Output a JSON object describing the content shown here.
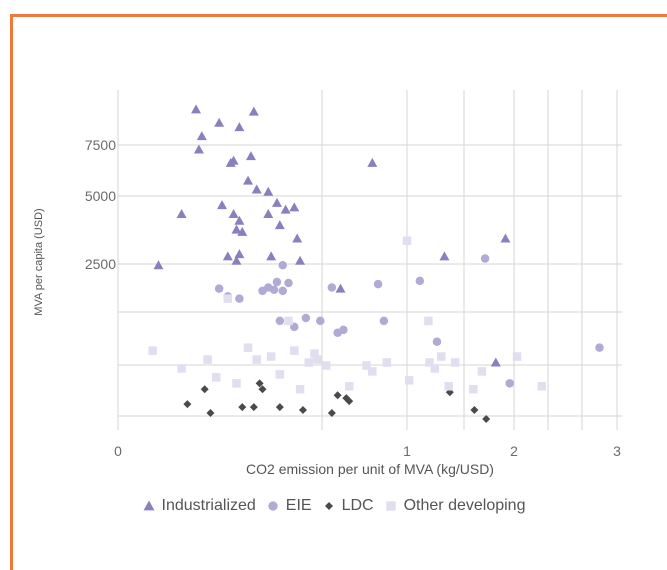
{
  "colors": {
    "frame": "#ee7a3a"
  },
  "chart_data": {
    "type": "scatter",
    "xlabel": "CO2 emission per unit of MVA (kg/USD)",
    "ylabel": "MVA per capita (USD)",
    "x_ticks": [
      "0",
      "1",
      "2",
      "3"
    ],
    "y_ticks": [
      "2500",
      "5000",
      "7500"
    ],
    "grid": true,
    "legend_position": "bottom",
    "series": [
      {
        "name": "Industrialized",
        "marker": "triangle",
        "color": "#8b80bf",
        "points": [
          [
            0.27,
            9100
          ],
          [
            0.35,
            8500
          ],
          [
            0.29,
            7900
          ],
          [
            0.42,
            8300
          ],
          [
            0.47,
            9000
          ],
          [
            0.28,
            7300
          ],
          [
            0.39,
            6700
          ],
          [
            0.4,
            6800
          ],
          [
            0.46,
            7000
          ],
          [
            0.88,
            6700
          ],
          [
            0.45,
            5900
          ],
          [
            0.48,
            5500
          ],
          [
            0.52,
            5400
          ],
          [
            0.22,
            4400
          ],
          [
            0.36,
            4800
          ],
          [
            0.55,
            4900
          ],
          [
            0.58,
            4600
          ],
          [
            0.61,
            4700
          ],
          [
            0.4,
            4400
          ],
          [
            0.42,
            4100
          ],
          [
            0.52,
            4400
          ],
          [
            0.41,
            3700
          ],
          [
            0.43,
            3600
          ],
          [
            0.56,
            3900
          ],
          [
            0.62,
            3300
          ],
          [
            0.14,
            2100
          ],
          [
            0.38,
            2500
          ],
          [
            0.42,
            2600
          ],
          [
            0.53,
            2500
          ],
          [
            0.63,
            2300
          ],
          [
            0.41,
            2300
          ],
          [
            0.77,
            1050
          ],
          [
            1.35,
            2500
          ],
          [
            1.92,
            3300
          ],
          [
            1.83,
            -1700
          ]
        ]
      },
      {
        "name": "EIE",
        "color": "#b2a9d4",
        "marker": "circle",
        "points": [
          [
            0.35,
            1050
          ],
          [
            0.38,
            700
          ],
          [
            0.42,
            600
          ],
          [
            0.5,
            950
          ],
          [
            0.52,
            1100
          ],
          [
            0.54,
            1000
          ],
          [
            0.55,
            1350
          ],
          [
            0.57,
            950
          ],
          [
            0.59,
            1300
          ],
          [
            0.57,
            2100
          ],
          [
            0.56,
            -300
          ],
          [
            0.61,
            -500
          ],
          [
            0.65,
            -200
          ],
          [
            0.7,
            -300
          ],
          [
            0.74,
            1100
          ],
          [
            0.76,
            -700
          ],
          [
            0.78,
            -600
          ],
          [
            0.9,
            1250
          ],
          [
            0.92,
            -300
          ],
          [
            1.12,
            1400
          ],
          [
            1.28,
            -1000
          ],
          [
            1.73,
            2400
          ],
          [
            2.83,
            -1200
          ],
          [
            1.96,
            -2400
          ]
        ]
      },
      {
        "name": "LDC",
        "color": "#4a4a4a",
        "marker": "diamond",
        "points": [
          [
            0.24,
            -3100
          ],
          [
            0.3,
            -2600
          ],
          [
            0.32,
            -3400
          ],
          [
            0.43,
            -3200
          ],
          [
            0.47,
            -3200
          ],
          [
            0.49,
            -2400
          ],
          [
            0.5,
            -2600
          ],
          [
            0.56,
            -3200
          ],
          [
            0.64,
            -3300
          ],
          [
            0.74,
            -3400
          ],
          [
            0.76,
            -2800
          ],
          [
            0.79,
            -2900
          ],
          [
            0.8,
            -3000
          ],
          [
            1.4,
            -2700
          ],
          [
            1.63,
            -3300
          ],
          [
            1.74,
            -3600
          ]
        ]
      },
      {
        "name": "Other developing",
        "color": "#e1def0",
        "marker": "square",
        "points": [
          [
            0.12,
            -1300
          ],
          [
            0.22,
            -1900
          ],
          [
            0.31,
            -1600
          ],
          [
            0.34,
            -2200
          ],
          [
            0.38,
            600
          ],
          [
            0.41,
            -2400
          ],
          [
            0.45,
            -1200
          ],
          [
            0.48,
            -1600
          ],
          [
            0.53,
            -1500
          ],
          [
            0.56,
            -2100
          ],
          [
            0.59,
            -300
          ],
          [
            0.61,
            -1300
          ],
          [
            0.63,
            -2600
          ],
          [
            0.66,
            -1700
          ],
          [
            0.68,
            -1400
          ],
          [
            0.69,
            -1600
          ],
          [
            0.72,
            -1800
          ],
          [
            0.8,
            -2500
          ],
          [
            0.86,
            -1800
          ],
          [
            0.88,
            -2000
          ],
          [
            0.93,
            -1700
          ],
          [
            1.0,
            3200
          ],
          [
            1.02,
            -2300
          ],
          [
            1.2,
            -300
          ],
          [
            1.21,
            -1700
          ],
          [
            1.26,
            -1900
          ],
          [
            1.32,
            -1500
          ],
          [
            1.39,
            -2500
          ],
          [
            1.45,
            -1700
          ],
          [
            1.62,
            -2600
          ],
          [
            1.7,
            -2000
          ],
          [
            2.03,
            -1500
          ],
          [
            2.27,
            -2500
          ]
        ]
      }
    ]
  },
  "legend": [
    {
      "label": "Industrialized",
      "marker": "triangle",
      "color": "#8b80bf"
    },
    {
      "label": "EIE",
      "marker": "circle",
      "color": "#b2a9d4"
    },
    {
      "label": "LDC",
      "marker": "diamond",
      "color": "#4a4a4a"
    },
    {
      "label": "Other developing",
      "marker": "square",
      "color": "#e1def0"
    }
  ]
}
